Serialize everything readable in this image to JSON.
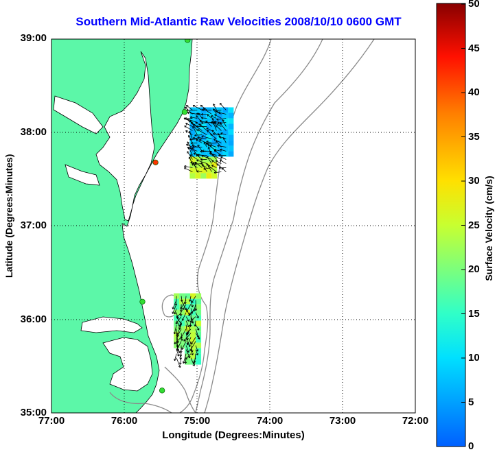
{
  "title": "Southern Mid-Atlantic Raw Velocities 2008/10/10 0600 GMT",
  "xlabel": "Longitude (Degrees:Minutes)",
  "ylabel": "Latitude (Degrees:Minutes)",
  "colorbar": {
    "label": "Surface Velocity (cm/s)",
    "range": [
      0,
      50
    ],
    "ticks": [
      "0",
      "5",
      "10",
      "15",
      "20",
      "25",
      "30",
      "35",
      "40",
      "45",
      "50"
    ]
  },
  "xticks": [
    "77:00",
    "76:00",
    "75:00",
    "74:00",
    "73:00",
    "72:00"
  ],
  "yticks": [
    "39:00",
    "38:00",
    "37:00",
    "36:00",
    "35:00"
  ],
  "map": {
    "lon_range": [
      -77,
      -72
    ],
    "lat_range": [
      35,
      39
    ],
    "land_color": "#5cf7a8",
    "bathymetry_color": "#8a8a8a",
    "grid": "dotted"
  },
  "stations": [
    {
      "lon": -75.13,
      "lat": 38.99,
      "color": "#33dd33"
    },
    {
      "lon": -75.17,
      "lat": 38.22,
      "color": "#33dd33"
    },
    {
      "lon": -75.57,
      "lat": 37.68,
      "color": "#ff3300"
    },
    {
      "lon": -75.75,
      "lat": 36.19,
      "color": "#33dd33"
    },
    {
      "lon": -75.48,
      "lat": 35.24,
      "color": "#33dd33"
    }
  ],
  "current_fields": [
    {
      "region": "north",
      "lon_range": [
        -75.1,
        -74.55
      ],
      "lat_range": [
        37.55,
        38.27
      ],
      "speed_cms": [
        5,
        28
      ]
    },
    {
      "region": "south",
      "lon_range": [
        -75.32,
        -74.98
      ],
      "lat_range": [
        35.55,
        36.28
      ],
      "speed_cms": [
        15,
        27
      ]
    }
  ]
}
